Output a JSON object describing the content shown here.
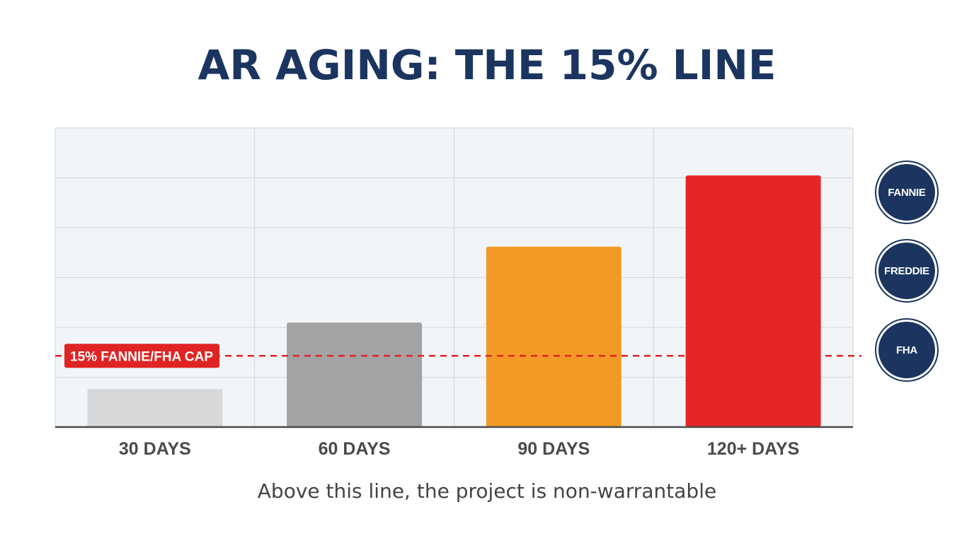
{
  "title": "AR AGING: THE 15% LINE",
  "caption": "Above this line, the project is non-warrantable",
  "badges": [
    "FANNIE",
    "FREDDIE",
    "FHA"
  ],
  "colors": {
    "title": "#1b3560",
    "badge": "#1b3560",
    "threshold": "#e02424",
    "plot_background": "#f2f5f8",
    "grid": "#cfd6dd"
  },
  "chart_data": {
    "type": "bar",
    "title": "AR AGING: THE 15% LINE",
    "xlabel": "",
    "ylabel": "",
    "categories": [
      "30 DAYS",
      "60 DAYS",
      "90 DAYS",
      "120+ DAYS"
    ],
    "values": [
      8,
      22,
      38,
      53
    ],
    "bar_colors": [
      "#d8d8d8",
      "#a3a3a3",
      "#f39a26",
      "#e62626"
    ],
    "ylim": [
      0,
      63
    ],
    "grid": true,
    "threshold": {
      "value": 15,
      "label": "15% FANNIE/FHA CAP",
      "style": "dashed"
    }
  }
}
